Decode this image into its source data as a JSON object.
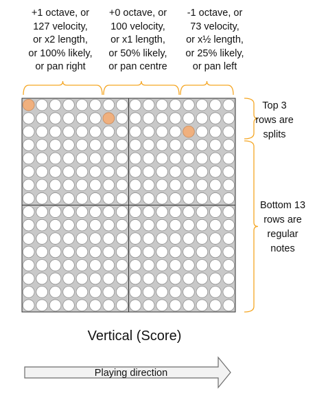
{
  "columns": [
    {
      "label": "+1 octave, or\n127 velocity,\nor x2 length,\nor 100% likely,\nor pan right"
    },
    {
      "label": "+0 octave, or\n100 velocity,\nor x1 length,\nor 50% likely,\nor pan centre"
    },
    {
      "label": "-1 octave, or\n73 velocity,\nor x½  length,\nor 25% likely,\nor pan left"
    }
  ],
  "side_labels": {
    "top": "Top 3\nrows are\nsplits",
    "bottom": "Bottom 13\nrows are\nregular\nnotes"
  },
  "title": "Vertical (Score)",
  "direction_label": "Playing direction",
  "grid": {
    "rows": 16,
    "cols": 16,
    "active_cells": [
      {
        "row": 1,
        "col": 1
      },
      {
        "row": 2,
        "col": 7
      },
      {
        "row": 3,
        "col": 13
      }
    ]
  },
  "colors": {
    "brace": "#F5A623",
    "active_cell": "#F0B07E",
    "grid_bg": "#C9C9C9",
    "cell_fill": "#FFFFFF",
    "cell_stroke": "#8E8E8E",
    "arrow_fill": "#F2F2F2",
    "arrow_stroke": "#6B6B6B"
  }
}
